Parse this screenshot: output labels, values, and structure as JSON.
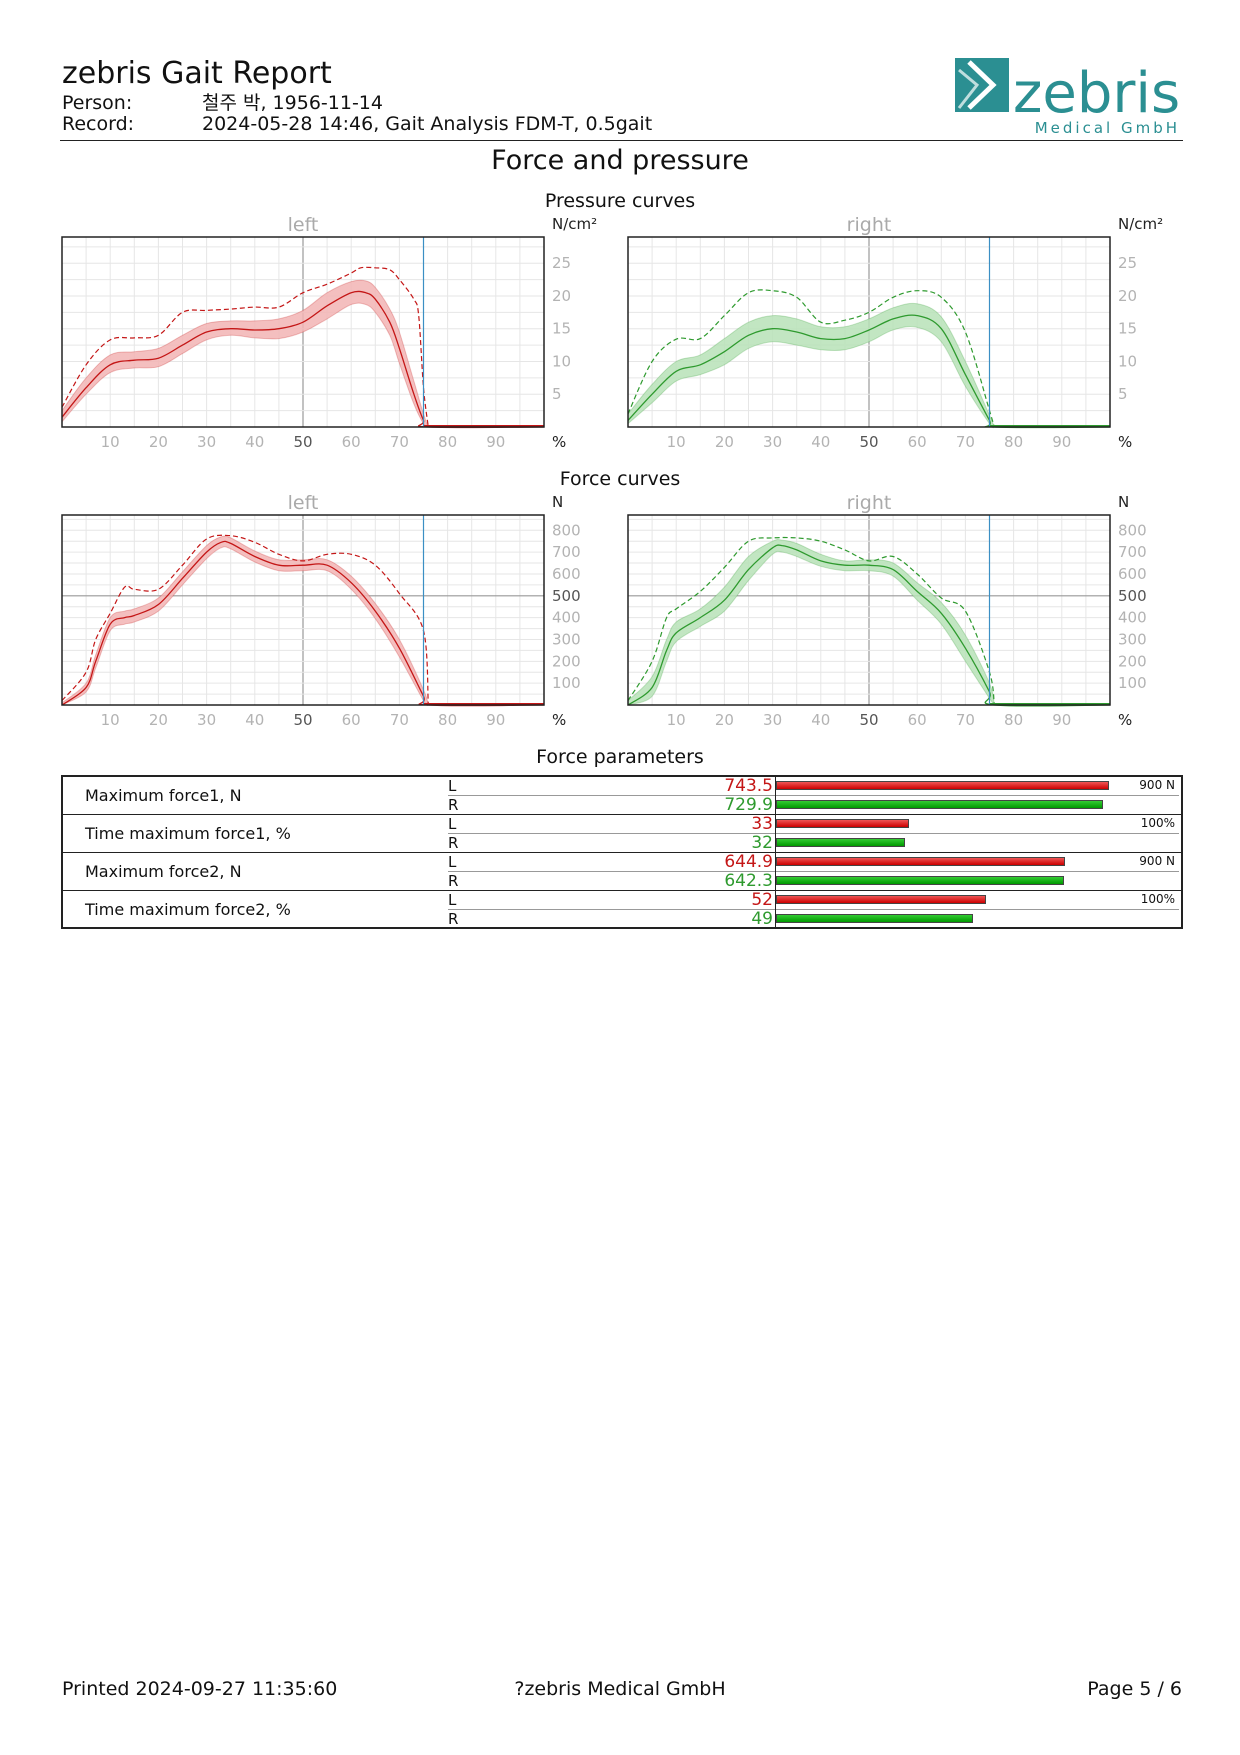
{
  "header": {
    "title": "zebris Gait Report",
    "person_label": "Person:",
    "person_value": "철주 박, 1956-11-14",
    "record_label": "Record:",
    "record_value": "2024-05-28 14:46, Gait Analysis FDM-T, 0.5gait",
    "logo_text": "zebris",
    "logo_sub": "Medical GmbH",
    "brand_color": "#2b8f92"
  },
  "section_title": "Force and pressure",
  "pressure": {
    "title": "Pressure curves",
    "unit_y": "N/cm²",
    "unit_x": "%",
    "left_label": "left",
    "right_label": "right"
  },
  "force": {
    "title": "Force curves",
    "unit_y": "N",
    "unit_x": "%",
    "left_label": "left",
    "right_label": "right"
  },
  "params": {
    "title": "Force parameters",
    "rows": [
      {
        "label": "Maximum force1, N",
        "L": "743.5",
        "R": "729.9",
        "lv": 743.5,
        "rv": 729.9,
        "max": 900,
        "max_label": "900 N"
      },
      {
        "label": "Time maximum force1, %",
        "L": "33",
        "R": "32",
        "lv": 33,
        "rv": 32,
        "max": 100,
        "max_label": "100%"
      },
      {
        "label": "Maximum force2, N",
        "L": "644.9",
        "R": "642.3",
        "lv": 644.9,
        "rv": 642.3,
        "max": 900,
        "max_label": "900 N"
      },
      {
        "label": "Time maximum force2, %",
        "L": "52",
        "R": "49",
        "lv": 52,
        "rv": 49,
        "max": 100,
        "max_label": "100%"
      }
    ],
    "side_L": "L",
    "side_R": "R"
  },
  "footer": {
    "printed": "Printed  2024-09-27 11:35:60",
    "company": "?zebris Medical GmbH",
    "page": "Page  5 / 6"
  },
  "colors": {
    "left": "#c41616",
    "left_band": "#f2b4b4",
    "right": "#2e9a2e",
    "right_band": "#b7e2b7",
    "marker": "#3b8fc4"
  },
  "chart_data": [
    {
      "type": "line",
      "title": "Pressure curves",
      "panel": "left",
      "ylabel": "N/cm²",
      "xlabel": "%",
      "xlim": [
        0,
        100
      ],
      "ylim": [
        0,
        29
      ],
      "x_ticks": [
        10,
        20,
        30,
        40,
        50,
        60,
        70,
        80,
        90
      ],
      "y_ticks": [
        5,
        10,
        15,
        20,
        25
      ],
      "grid": true,
      "stance_end": 75,
      "series": [
        {
          "role": "mean",
          "x": [
            0,
            5,
            10,
            15,
            20,
            25,
            30,
            35,
            40,
            45,
            50,
            55,
            60,
            63,
            65,
            68,
            70,
            73,
            75,
            76,
            100
          ],
          "values": [
            1.5,
            6,
            9.5,
            10.2,
            10.5,
            12.5,
            14.5,
            15,
            14.8,
            15,
            16,
            18.5,
            20.5,
            20.5,
            19.5,
            16,
            12,
            5,
            1,
            0,
            0
          ]
        },
        {
          "role": "upper",
          "x": [
            0,
            5,
            10,
            15,
            20,
            25,
            30,
            35,
            40,
            45,
            50,
            55,
            60,
            63,
            65,
            68,
            70,
            73,
            75,
            76
          ],
          "values": [
            2.5,
            7.5,
            11,
            11.5,
            12,
            14,
            15.8,
            16.2,
            16.2,
            16.5,
            17.8,
            20.5,
            22.2,
            22.3,
            21.3,
            18,
            14.5,
            7,
            2,
            0
          ]
        },
        {
          "role": "lower",
          "x": [
            0,
            5,
            10,
            15,
            20,
            25,
            30,
            35,
            40,
            45,
            50,
            55,
            60,
            63,
            65,
            68,
            70,
            73,
            75,
            76
          ],
          "values": [
            0.8,
            5,
            8.3,
            9,
            9.2,
            11.2,
            13.3,
            14,
            13.6,
            13.5,
            14.5,
            16.5,
            18.7,
            18.7,
            17.5,
            14,
            9.7,
            3.5,
            0.5,
            0
          ]
        },
        {
          "role": "max",
          "x": [
            0,
            5,
            10,
            15,
            20,
            25,
            30,
            35,
            40,
            45,
            50,
            55,
            60,
            62,
            65,
            68,
            70,
            73,
            74,
            75,
            76
          ],
          "values": [
            3,
            9.5,
            13.3,
            13.6,
            14,
            17.5,
            17.8,
            18,
            18.3,
            18.3,
            20.5,
            21.8,
            23.5,
            24.3,
            24.3,
            24,
            22.5,
            19.5,
            17,
            6,
            0
          ]
        }
      ]
    },
    {
      "type": "line",
      "title": "Pressure curves",
      "panel": "right",
      "ylabel": "N/cm²",
      "xlabel": "%",
      "xlim": [
        0,
        100
      ],
      "ylim": [
        0,
        29
      ],
      "x_ticks": [
        10,
        20,
        30,
        40,
        50,
        60,
        70,
        80,
        90
      ],
      "y_ticks": [
        5,
        10,
        15,
        20,
        25
      ],
      "grid": true,
      "stance_end": 75,
      "series": [
        {
          "role": "mean",
          "x": [
            0,
            5,
            10,
            15,
            20,
            25,
            30,
            35,
            40,
            45,
            50,
            55,
            60,
            65,
            70,
            75,
            76,
            100
          ],
          "values": [
            1,
            5,
            8.5,
            9.5,
            11.5,
            14,
            15,
            14.5,
            13.5,
            13.5,
            14.8,
            16.5,
            17,
            15,
            8,
            1,
            0,
            0
          ]
        },
        {
          "role": "upper",
          "x": [
            0,
            5,
            10,
            15,
            20,
            25,
            30,
            35,
            40,
            45,
            50,
            55,
            60,
            65,
            70,
            75,
            76
          ],
          "values": [
            2,
            6.5,
            10,
            11,
            13.5,
            16,
            17,
            16.5,
            15.3,
            15.3,
            16.5,
            18.2,
            18.8,
            16.8,
            10,
            1.8,
            0
          ]
        },
        {
          "role": "lower",
          "x": [
            0,
            5,
            10,
            15,
            20,
            25,
            30,
            35,
            40,
            45,
            50,
            55,
            60,
            65,
            70,
            75,
            76
          ],
          "values": [
            0.5,
            3.7,
            7,
            8,
            9.5,
            12,
            13,
            12.5,
            11.8,
            11.8,
            13,
            14.8,
            15.2,
            13,
            6.2,
            0.5,
            0
          ]
        },
        {
          "role": "max",
          "x": [
            0,
            5,
            10,
            15,
            20,
            25,
            30,
            35,
            40,
            45,
            50,
            55,
            60,
            65,
            70,
            75,
            76
          ],
          "values": [
            2,
            10,
            13.4,
            13.5,
            17,
            20.5,
            20.8,
            19.8,
            16,
            16.3,
            17.5,
            19.8,
            20.8,
            19.8,
            14.5,
            2.5,
            0
          ]
        }
      ]
    },
    {
      "type": "line",
      "title": "Force curves",
      "panel": "left",
      "ylabel": "N",
      "xlabel": "%",
      "xlim": [
        0,
        100
      ],
      "ylim": [
        0,
        870
      ],
      "x_ticks": [
        10,
        20,
        30,
        40,
        50,
        60,
        70,
        80,
        90
      ],
      "y_ticks": [
        100,
        200,
        300,
        400,
        500,
        600,
        700,
        800
      ],
      "grid": true,
      "stance_end": 75,
      "series": [
        {
          "role": "mean",
          "x": [
            0,
            5,
            7,
            10,
            13,
            15,
            20,
            25,
            30,
            33,
            35,
            40,
            45,
            50,
            55,
            60,
            65,
            70,
            75,
            76,
            100
          ],
          "values": [
            0,
            80,
            200,
            370,
            400,
            410,
            460,
            580,
            700,
            745,
            740,
            680,
            640,
            640,
            640,
            560,
            430,
            260,
            40,
            0,
            0
          ]
        },
        {
          "role": "upper",
          "x": [
            0,
            5,
            7,
            10,
            13,
            15,
            20,
            25,
            30,
            33,
            35,
            40,
            45,
            50,
            55,
            60,
            65,
            70,
            75,
            76
          ],
          "values": [
            10,
            100,
            230,
            400,
            430,
            440,
            490,
            610,
            730,
            770,
            765,
            705,
            665,
            665,
            665,
            590,
            465,
            300,
            70,
            0
          ]
        },
        {
          "role": "lower",
          "x": [
            0,
            5,
            7,
            10,
            13,
            15,
            20,
            25,
            30,
            33,
            35,
            40,
            45,
            50,
            55,
            60,
            65,
            70,
            75,
            76
          ],
          "values": [
            0,
            60,
            170,
            340,
            370,
            380,
            430,
            550,
            670,
            720,
            715,
            655,
            615,
            615,
            615,
            530,
            395,
            220,
            20,
            0
          ]
        },
        {
          "role": "max",
          "x": [
            0,
            5,
            7,
            10,
            13,
            15,
            20,
            25,
            30,
            35,
            40,
            45,
            50,
            55,
            60,
            65,
            70,
            75,
            76
          ],
          "values": [
            20,
            150,
            300,
            420,
            540,
            530,
            530,
            640,
            760,
            775,
            745,
            690,
            660,
            690,
            690,
            640,
            510,
            340,
            0
          ]
        }
      ]
    },
    {
      "type": "line",
      "title": "Force curves",
      "panel": "right",
      "ylabel": "N",
      "xlabel": "%",
      "xlim": [
        0,
        100
      ],
      "ylim": [
        0,
        870
      ],
      "x_ticks": [
        10,
        20,
        30,
        40,
        50,
        60,
        70,
        80,
        90
      ],
      "y_ticks": [
        100,
        200,
        300,
        400,
        500,
        600,
        700,
        800
      ],
      "grid": true,
      "stance_end": 75,
      "series": [
        {
          "role": "mean",
          "x": [
            0,
            5,
            8,
            10,
            15,
            20,
            25,
            30,
            32,
            35,
            40,
            45,
            50,
            55,
            60,
            65,
            70,
            75,
            76,
            100
          ],
          "values": [
            0,
            80,
            250,
            330,
            400,
            480,
            620,
            720,
            730,
            710,
            660,
            640,
            640,
            620,
            520,
            420,
            260,
            60,
            0,
            0
          ]
        },
        {
          "role": "upper",
          "x": [
            0,
            5,
            8,
            10,
            15,
            20,
            25,
            30,
            32,
            35,
            40,
            45,
            50,
            55,
            60,
            65,
            70,
            75,
            76
          ],
          "values": [
            20,
            130,
            300,
            380,
            440,
            540,
            680,
            750,
            755,
            740,
            690,
            660,
            665,
            650,
            560,
            470,
            320,
            100,
            0
          ]
        },
        {
          "role": "lower",
          "x": [
            0,
            5,
            8,
            10,
            15,
            20,
            25,
            30,
            32,
            35,
            40,
            45,
            50,
            55,
            60,
            65,
            70,
            75,
            76
          ],
          "values": [
            0,
            40,
            200,
            290,
            360,
            430,
            570,
            690,
            700,
            680,
            635,
            615,
            615,
            590,
            480,
            370,
            200,
            30,
            0
          ]
        },
        {
          "role": "max",
          "x": [
            0,
            5,
            8,
            10,
            15,
            20,
            25,
            30,
            35,
            40,
            45,
            50,
            55,
            60,
            65,
            70,
            75,
            76
          ],
          "values": [
            20,
            200,
            400,
            440,
            520,
            630,
            750,
            765,
            765,
            750,
            710,
            660,
            680,
            600,
            490,
            430,
            150,
            0
          ]
        }
      ]
    }
  ]
}
